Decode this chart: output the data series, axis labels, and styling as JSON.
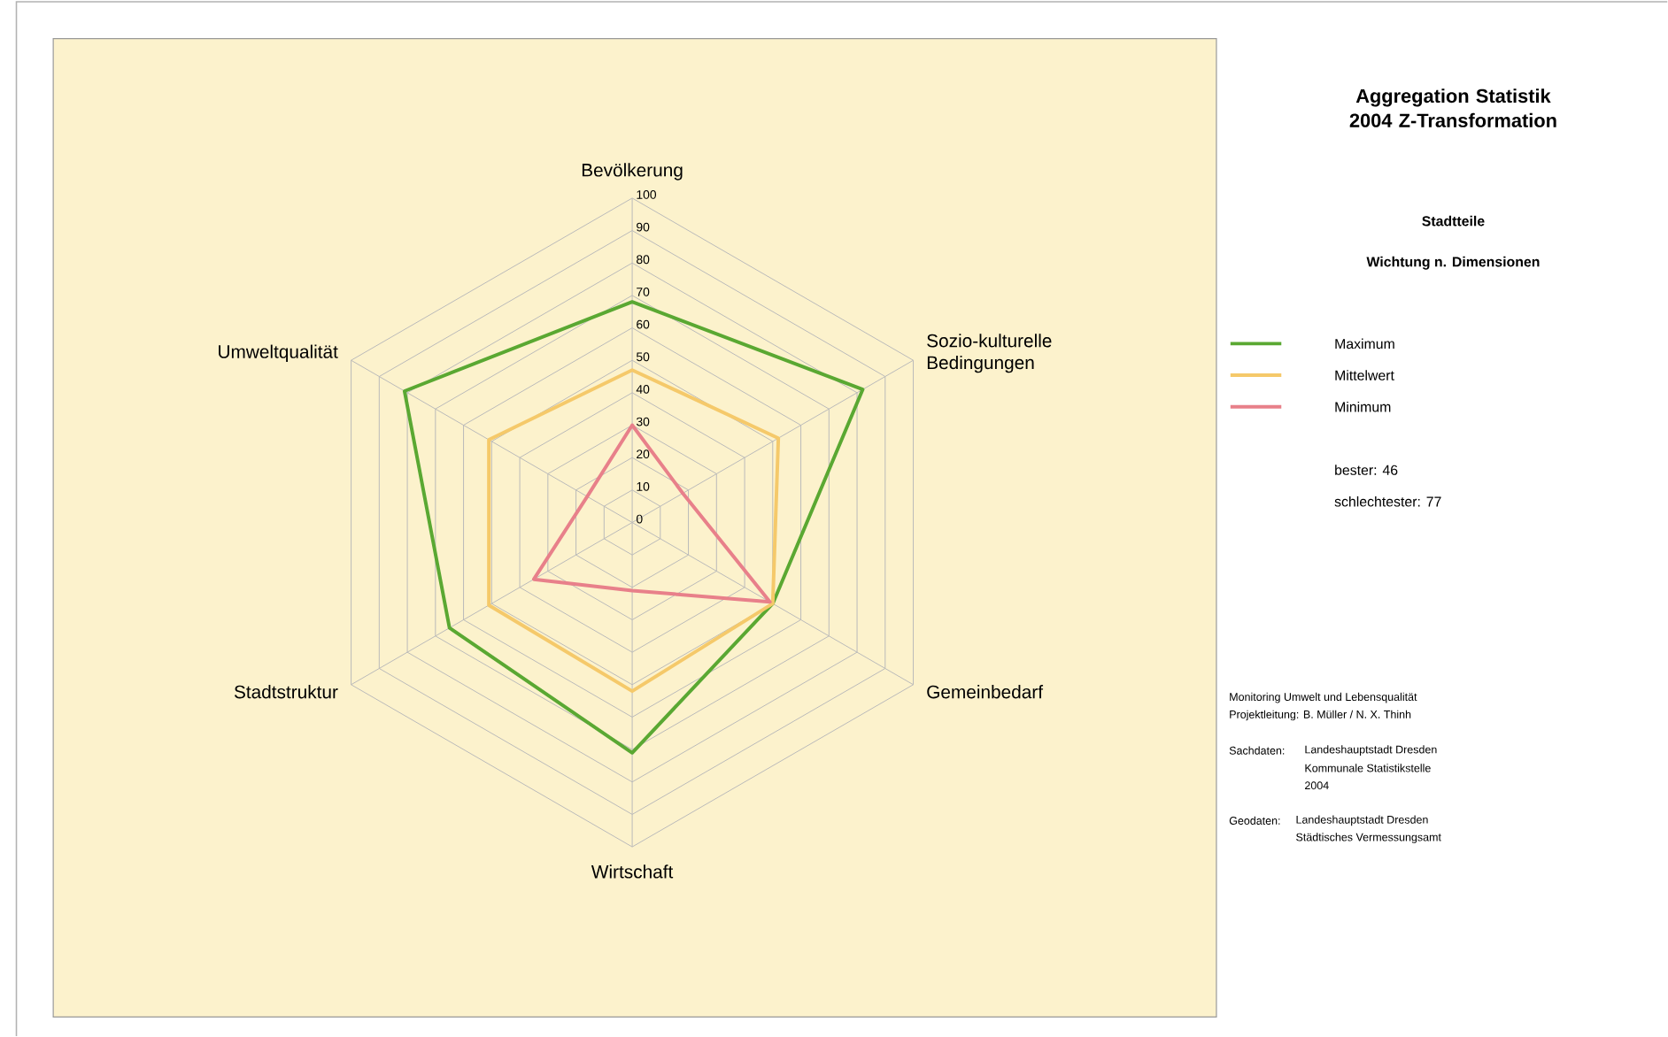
{
  "chart_data": {
    "type": "radar",
    "title": "Aggregation Statistik 2004 Z-Transformation",
    "subtitle": "Stadtteile",
    "categories": [
      "Bevölkerung",
      "Sozio-kulturelle Bedingungen",
      "Gemeinbedarf",
      "Wirtschaft",
      "Stadtstruktur",
      "Umweltqualität"
    ],
    "series": [
      {
        "name": "Maximum",
        "color": "#5aa832",
        "values": [
          68,
          82,
          50,
          71,
          65,
          81
        ]
      },
      {
        "name": "Mittelwert",
        "color": "#f5c96a",
        "values": [
          47,
          52,
          50,
          52,
          51,
          51
        ]
      },
      {
        "name": "Minimum",
        "color": "#e8808a",
        "values": [
          30,
          18,
          49,
          21,
          35,
          16
        ]
      }
    ],
    "ylim": [
      0,
      100
    ],
    "yticks": [
      0,
      10,
      20,
      30,
      40,
      50,
      60,
      70,
      80,
      90,
      100
    ],
    "legend": "right",
    "annotations": [
      "Wichtung n. Dimensionen",
      "bester: 46",
      "schlechtester: 77",
      "Monitoring Umwelt und Lebensqualität",
      "Projektleitung: B. Müller / N. X. Thinh",
      "Sachdaten:",
      "Landeshauptstadt Dresden",
      "Kommunale Statistikstelle",
      "2004",
      "Geodaten:",
      "Landeshauptstadt Dresden",
      "Städtisches Vermessungsamt"
    ]
  }
}
